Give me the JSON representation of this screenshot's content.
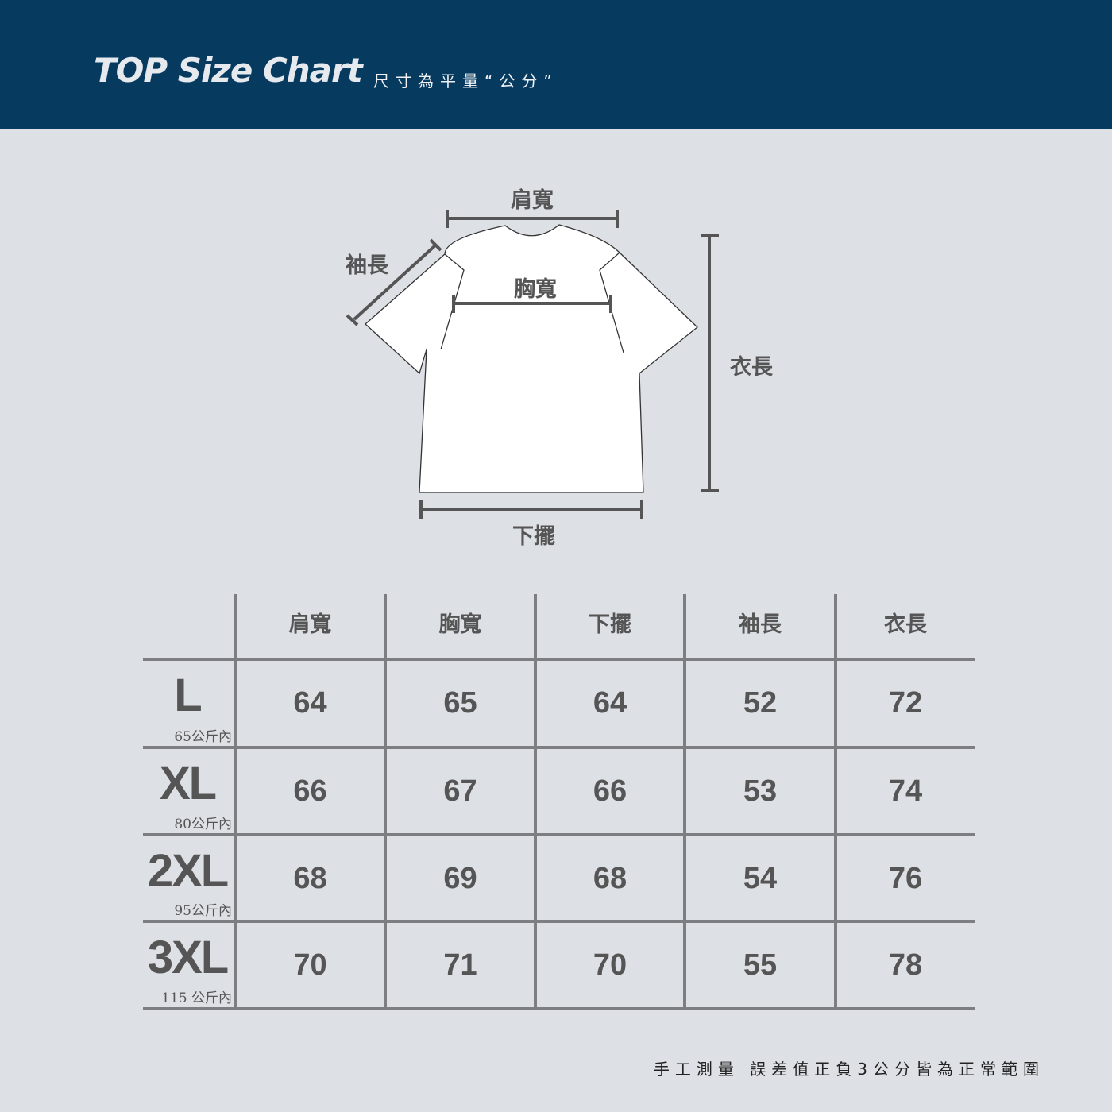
{
  "header": {
    "title": "TOP Size Chart",
    "subtitle": "尺寸為平量“公分”"
  },
  "diagram": {
    "shoulder": "肩寬",
    "sleeve": "袖長",
    "chest": "胸寬",
    "length": "衣長",
    "hem": "下擺"
  },
  "table": {
    "columns": [
      "肩寬",
      "胸寬",
      "下擺",
      "袖長",
      "衣長"
    ],
    "rows": [
      {
        "size": "L",
        "weight": "65公斤內",
        "values": [
          "64",
          "65",
          "64",
          "52",
          "72"
        ]
      },
      {
        "size": "XL",
        "weight": "80公斤內",
        "values": [
          "66",
          "67",
          "66",
          "53",
          "74"
        ]
      },
      {
        "size": "2XL",
        "weight": "95公斤內",
        "values": [
          "68",
          "69",
          "68",
          "54",
          "76"
        ]
      },
      {
        "size": "3XL",
        "weight": "115 公斤內",
        "values": [
          "70",
          "71",
          "70",
          "55",
          "78"
        ]
      }
    ]
  },
  "footer": "手工測量 誤差值正負3公分皆為正常範圍",
  "colors": {
    "header": "#073a5f",
    "background": "#dde0e5",
    "grid": "#7c7e81"
  }
}
